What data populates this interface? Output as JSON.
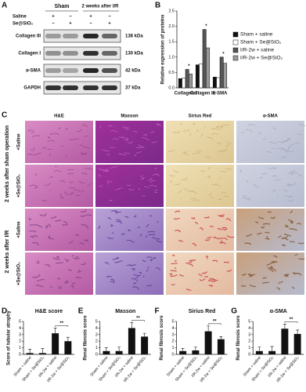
{
  "panel_a": {
    "letter": "A",
    "groups": [
      "Sham",
      "2 weeks after I/R"
    ],
    "treatments": [
      {
        "name": "Saline",
        "signs": [
          "+",
          "−",
          "+",
          "−"
        ]
      },
      {
        "name": "Se@SiO₂",
        "signs": [
          "−",
          "+",
          "−",
          "+"
        ]
      }
    ],
    "blots": [
      {
        "protein": "Collagen III",
        "size": "138 kDa"
      },
      {
        "protein": "Collagen I",
        "size": "130 kDa"
      },
      {
        "protein": "α-SMA",
        "size": "42 kDa"
      },
      {
        "protein": "GAPDH",
        "size": "37 kDa"
      }
    ]
  },
  "panel_c": {
    "letter": "C",
    "columns": [
      "H&E",
      "Masson",
      "Sirius Red",
      "α-SMA"
    ],
    "groups": [
      {
        "label": "2 weeks after sham operation",
        "rows": [
          "+Saline",
          "+Se@SiO₂"
        ]
      },
      {
        "label": "2 weeks after I/R",
        "rows": [
          "+Saline",
          "+Se@SiO₂"
        ]
      }
    ]
  },
  "chart_data": [
    {
      "type": "grouped_bar",
      "panel": "B",
      "ylabel": "Relative expression of proteins",
      "categories": [
        "Collagen I",
        "Collagen III",
        "α-SMA"
      ],
      "series": [
        {
          "name": "Sham + saline",
          "color": "#111111",
          "values": [
            0.3,
            0.75,
            0.35
          ]
        },
        {
          "name": "Sham + Se@SiO₂",
          "color": "#ffffff",
          "values": [
            0.32,
            0.78,
            0.33
          ]
        },
        {
          "name": "I/R-2w + saline",
          "color": "#555555",
          "values": [
            0.6,
            1.9,
            1.0
          ]
        },
        {
          "name": "I/R-2w + Se@SiO₂",
          "color": "#9a9a9a",
          "values": [
            0.45,
            1.3,
            0.8
          ]
        }
      ],
      "annotations": [
        "*",
        "*",
        "*"
      ],
      "ylim": [
        0,
        2.5
      ],
      "yticks": [
        {
          "value": 0,
          "label": "0.0"
        },
        {
          "value": 0.5,
          "label": "0.5"
        },
        {
          "value": 1,
          "label": "1.0"
        },
        {
          "value": 1.5,
          "label": "1.5"
        },
        {
          "value": 2,
          "label": "2.0"
        },
        {
          "value": 2.5,
          "label": "2.5"
        }
      ]
    },
    {
      "type": "bar",
      "panel": "D",
      "title": "H&E score",
      "ylabel": "Score of tubular atrophy",
      "categories": [
        "Sham + saline",
        "Sham + Se@SiO₂",
        "I/R-2w + saline",
        "I/R-2w + Se@SiO₂"
      ],
      "values": [
        0.2,
        0.2,
        3.2,
        2.0
      ],
      "errors": [
        0.6,
        0.7,
        0.8,
        0.6
      ],
      "color": "#111111",
      "annotation": "**",
      "ylim": [
        0,
        5
      ],
      "yticks": [
        0,
        1,
        2,
        3,
        4,
        5
      ]
    },
    {
      "type": "bar",
      "panel": "E",
      "title": "Masson",
      "ylabel": "Renal fibrosis score",
      "categories": [
        "Sham + saline",
        "Sham + Se@SiO₂",
        "I/R-2w + saline",
        "I/R-2w + Se@SiO₂"
      ],
      "values": [
        0.5,
        0.5,
        4.0,
        2.7
      ],
      "errors": [
        0.5,
        0.6,
        0.8,
        0.5
      ],
      "color": "#111111",
      "annotation": "**",
      "ylim": [
        0,
        5
      ],
      "yticks": [
        0,
        1,
        2,
        3,
        4,
        5
      ]
    },
    {
      "type": "bar",
      "panel": "F",
      "title": "Sirius Red",
      "ylabel": "Renal fibrosis score",
      "categories": [
        "Sham + saline",
        "Sham + Se@SiO₂",
        "I/R-2w + saline",
        "I/R-2w + Se@SiO₂"
      ],
      "values": [
        0.5,
        0.6,
        3.5,
        2.3
      ],
      "errors": [
        0.4,
        0.5,
        0.8,
        0.4
      ],
      "color": "#111111",
      "annotation": "**",
      "ylim": [
        0,
        5
      ],
      "yticks": [
        0,
        1,
        2,
        3,
        4,
        5
      ]
    },
    {
      "type": "bar",
      "panel": "G",
      "title": "α-SMA",
      "ylabel": "Renal fibrosis score",
      "categories": [
        "Sham + saline",
        "Sham + Se@SiO₂",
        "I/R-2w + saline",
        "I/R-2w + Se@SiO₂"
      ],
      "values": [
        0.5,
        0.5,
        3.9,
        3.1
      ],
      "errors": [
        0.6,
        0.7,
        0.7,
        0.6
      ],
      "color": "#111111",
      "annotation": "**",
      "ylim": [
        0,
        5
      ],
      "yticks": [
        0,
        1,
        2,
        3,
        4,
        5
      ]
    }
  ]
}
